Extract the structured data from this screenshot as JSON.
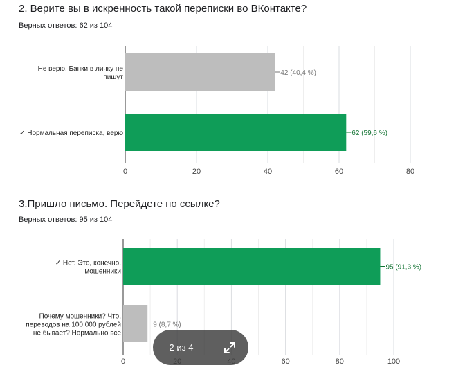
{
  "questions": [
    {
      "title": "2. Верите вы в искренность такой переписки во ВКонтакте?",
      "subtitle": "Верных ответов: 62 из 104"
    },
    {
      "title": "3.Пришло письмо. Перейдете по ссылке?",
      "subtitle": "Верных ответов: 95 из 104"
    }
  ],
  "chart_data": [
    {
      "type": "bar",
      "orientation": "horizontal",
      "categories": [
        [
          "Не верю. Банки в личку не",
          "пишут"
        ],
        [
          "✓ Нормальная переписка, верю"
        ]
      ],
      "values": [
        42,
        62
      ],
      "data_labels": [
        "42 (40,4 %)",
        "62 (59,6 %)"
      ],
      "bar_colors": [
        "#bdbdbd",
        "#0f9d58"
      ],
      "label_colors": [
        "#757575",
        "#137333"
      ],
      "xlim": [
        0,
        80
      ],
      "xticks": [
        0,
        20,
        40,
        60,
        80
      ],
      "grid": true,
      "title": "",
      "xlabel": "",
      "ylabel": ""
    },
    {
      "type": "bar",
      "orientation": "horizontal",
      "categories": [
        [
          "✓ Нет. Это, конечно,",
          "мошенники"
        ],
        [
          "Почему мошенники? Что,",
          "переводов на 100 000 рублей",
          "не бывает? Нормально все"
        ]
      ],
      "values": [
        95,
        9
      ],
      "data_labels": [
        "95 (91,3 %)",
        "9 (8,7 %)"
      ],
      "bar_colors": [
        "#0f9d58",
        "#bdbdbd"
      ],
      "label_colors": [
        "#137333",
        "#757575"
      ],
      "xlim": [
        0,
        100
      ],
      "xticks": [
        0,
        20,
        40,
        60,
        80,
        100
      ],
      "grid": true,
      "title": "",
      "xlabel": "",
      "ylabel": ""
    }
  ],
  "pager": {
    "label": "2 из 4",
    "expand_icon": "expand-arrows-icon"
  }
}
